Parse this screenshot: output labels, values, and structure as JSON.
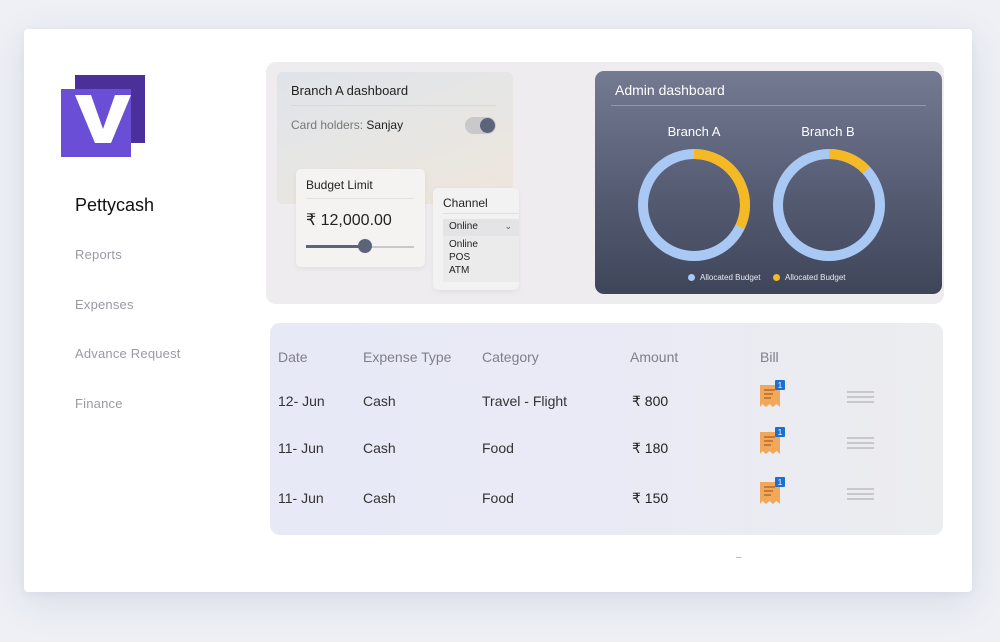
{
  "app": {
    "brand_name": "Pettycash",
    "logo_letter": "V",
    "colors": {
      "logo_back": "#4b2f9b",
      "logo_front": "#6a4fd6",
      "accent_yellow": "#f6b926",
      "accent_blue": "#a9c8f4"
    }
  },
  "sidebar": {
    "items": [
      {
        "label": "Reports"
      },
      {
        "label": "Expenses"
      },
      {
        "label": "Advance Request"
      },
      {
        "label": "Finance"
      }
    ]
  },
  "branch_dashboard": {
    "title": "Branch A dashboard",
    "card_holders_label": "Card holders:",
    "card_holders_value": "Sanjay",
    "toggle_on": true
  },
  "budget": {
    "label": "Budget Limit",
    "value": "₹ 12,000.00",
    "slider_level": 0.55
  },
  "channel": {
    "label": "Channel",
    "selected": "Online",
    "options": [
      "Online",
      "POS",
      "ATM"
    ]
  },
  "admin_dashboard": {
    "title": "Admin dashboard",
    "legend": [
      {
        "label": "Allocated Budget",
        "color": "#a9c8f4"
      },
      {
        "label": "Allocated Budget",
        "color": "#f6b926"
      }
    ],
    "donuts": [
      {
        "label": "Branch A",
        "allocated_fraction": 0.68,
        "used_fraction": 0.32
      },
      {
        "label": "Branch B",
        "allocated_fraction": 0.87,
        "used_fraction": 0.13
      }
    ]
  },
  "expenses_table": {
    "headers": [
      "Date",
      "Expense Type",
      "Category",
      "Amount",
      "Bill"
    ],
    "rows": [
      {
        "date": "12- Jun",
        "type": "Cash",
        "category": "Travel - Flight",
        "amount": "₹ 800",
        "bill_count": "1"
      },
      {
        "date": "11- Jun",
        "type": "Cash",
        "category": "Food",
        "amount": "₹ 180",
        "bill_count": "1"
      },
      {
        "date": "11- Jun",
        "type": "Cash",
        "category": "Food",
        "amount": "₹ 150",
        "bill_count": "1"
      }
    ]
  },
  "footer_mark": "–"
}
